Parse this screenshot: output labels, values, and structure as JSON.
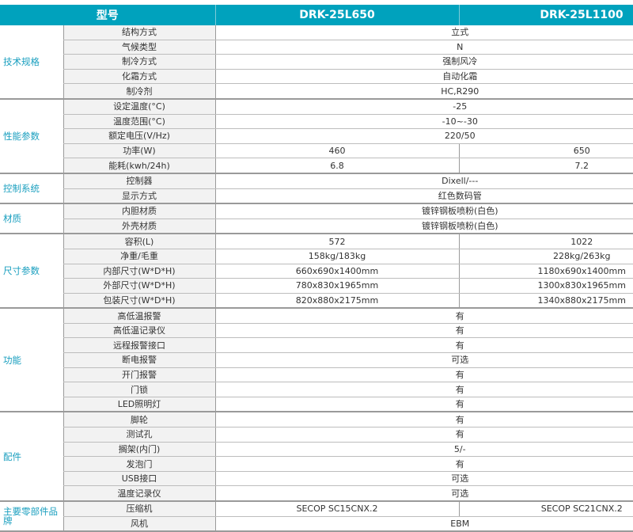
{
  "header": {
    "model_label": "型号",
    "models": [
      "DRK-25L650",
      "DRK-25L1100"
    ]
  },
  "colors": {
    "header_bg": "#00a2bd",
    "group_text": "#1a9fbf"
  },
  "groups": [
    {
      "name": "技术规格",
      "rows": [
        {
          "label": "结构方式",
          "value": "立式"
        },
        {
          "label": "气候类型",
          "value": "N"
        },
        {
          "label": "制冷方式",
          "value": "强制风冷"
        },
        {
          "label": "化霜方式",
          "value": "自动化霜"
        },
        {
          "label": "制冷剂",
          "value": "HC,R290"
        }
      ]
    },
    {
      "name": "性能参数",
      "rows": [
        {
          "label": "设定温度(°C)",
          "value": "-25"
        },
        {
          "label": "温度范围(°C)",
          "value": "-10~-30"
        },
        {
          "label": "额定电压(V/Hz)",
          "value": "220/50"
        },
        {
          "label": "功率(W)",
          "values": [
            "460",
            "650"
          ]
        },
        {
          "label": "能耗(kwh/24h)",
          "values": [
            "6.8",
            "7.2"
          ]
        }
      ]
    },
    {
      "name": "控制系统",
      "rows": [
        {
          "label": "控制器",
          "value": "Dixell/---"
        },
        {
          "label": "显示方式",
          "value": "红色数码管"
        }
      ]
    },
    {
      "name": "材质",
      "rows": [
        {
          "label": "内胆材质",
          "value": "镀锌钢板喷粉(白色)"
        },
        {
          "label": "外壳材质",
          "value": "镀锌钢板喷粉(白色)"
        }
      ]
    },
    {
      "name": "尺寸参数",
      "rows": [
        {
          "label": "容积(L)",
          "values": [
            "572",
            "1022"
          ]
        },
        {
          "label": "净重/毛重",
          "values": [
            "158kg/183kg",
            "228kg/263kg"
          ]
        },
        {
          "label": "内部尺寸(W*D*H)",
          "values": [
            "660x690x1400mm",
            "1180x690x1400mm"
          ]
        },
        {
          "label": "外部尺寸(W*D*H)",
          "values": [
            "780x830x1965mm",
            "1300x830x1965mm"
          ]
        },
        {
          "label": "包装尺寸(W*D*H)",
          "values": [
            "820x880x2175mm",
            "1340x880x2175mm"
          ]
        }
      ]
    },
    {
      "name": "功能",
      "rows": [
        {
          "label": "高低温报警",
          "value": "有"
        },
        {
          "label": "高低温记录仪",
          "value": "有"
        },
        {
          "label": "远程报警接口",
          "value": "有"
        },
        {
          "label": "断电报警",
          "value": "可选"
        },
        {
          "label": "开门报警",
          "value": "有"
        },
        {
          "label": "门锁",
          "value": "有"
        },
        {
          "label": "LED照明灯",
          "value": "有"
        }
      ]
    },
    {
      "name": "配件",
      "rows": [
        {
          "label": "脚轮",
          "value": "有"
        },
        {
          "label": "测试孔",
          "value": "有"
        },
        {
          "label": "搁架(内门)",
          "value": "5/-"
        },
        {
          "label": "发泡门",
          "value": "有"
        },
        {
          "label": "USB接口",
          "value": "可选"
        },
        {
          "label": "温度记录仪",
          "value": "可选"
        }
      ]
    },
    {
      "name": "主要零部件品牌",
      "rows": [
        {
          "label": "压缩机",
          "values": [
            "SECOP SC15CNX.2",
            "SECOP SC21CNX.2"
          ]
        },
        {
          "label": "风机",
          "value": "EBM"
        }
      ]
    }
  ]
}
